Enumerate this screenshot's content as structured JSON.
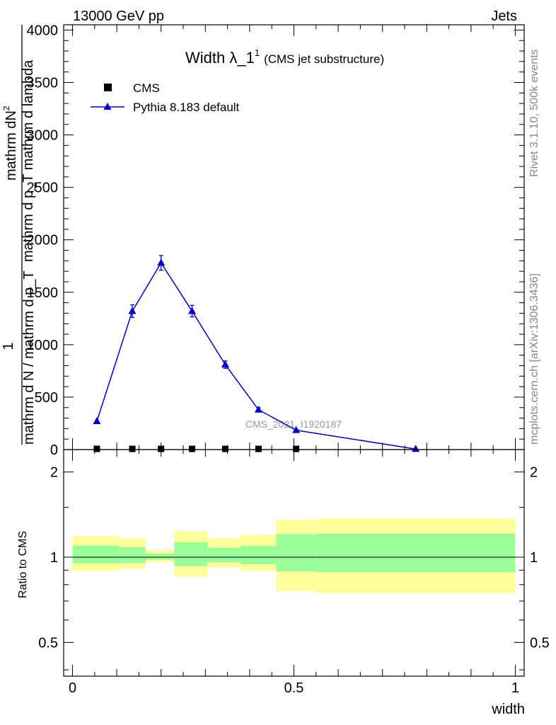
{
  "header": {
    "energy_label": "13000 GeV pp",
    "category_label": "Jets",
    "rivet_label": "Rivet 3.1.10,  500k events",
    "site_label": "mcplots.cern.ch [arXiv:1306.3436]",
    "analysis_label": "CMS_2021_I1920187"
  },
  "chart_data": [
    {
      "type": "line",
      "title": "Width λ_1",
      "title_sup": "1",
      "subtitle": "(CMS jet substructure)",
      "ylabel_numerator": "mathrm dN",
      "ylabel_numerator_sup": "2",
      "ylabel_numerator_2": "mathrm d p_T mathrm d lambda",
      "ylabel_denominator": "mathrm d N / mathrm d p_T",
      "ylabel_one": "1",
      "ylim": [
        0,
        4050
      ],
      "yticks": [
        0,
        500,
        1000,
        1500,
        2000,
        2500,
        3000,
        3500,
        4000
      ],
      "ytick_labels": [
        "0",
        "500",
        "1000",
        "1500",
        "2000",
        "2500",
        "3000",
        "3500",
        "4000"
      ],
      "xlim": [
        -0.02,
        1.02
      ],
      "legend_position": "top-left",
      "series": [
        {
          "name": "CMS",
          "marker": "square",
          "color": "#000000",
          "x": [
            0.055,
            0.135,
            0.2,
            0.27,
            0.345,
            0.42,
            0.505
          ],
          "y": [
            0,
            0,
            0,
            0,
            0,
            0,
            0
          ]
        },
        {
          "name": "Pythia 8.183 default",
          "marker": "triangle",
          "color": "#0000cc",
          "x": [
            0.055,
            0.135,
            0.2,
            0.27,
            0.345,
            0.42,
            0.505,
            0.775
          ],
          "y": [
            270,
            1320,
            1780,
            1320,
            810,
            380,
            185,
            5
          ],
          "yerr": [
            0,
            60,
            70,
            55,
            35,
            20,
            0,
            0
          ]
        }
      ]
    },
    {
      "type": "area",
      "ylabel": "Ratio to CMS",
      "xlabel": "width",
      "log_scale_y": true,
      "ylim": [
        0.38,
        2.4
      ],
      "yticks": [
        0.5,
        1,
        2
      ],
      "ytick_labels": [
        "0.5",
        "1",
        "2"
      ],
      "xlim": [
        -0.02,
        1.02
      ],
      "xticks": [
        0,
        0.5,
        1
      ],
      "xtick_labels": [
        "0",
        "0.5",
        "1"
      ],
      "reference_line": 1,
      "colors": {
        "inner_band": "#99ff99",
        "outer_band": "#ffff99"
      },
      "bins": [
        {
          "x0": 0.0,
          "x1": 0.105,
          "outer": [
            0.895,
            1.185
          ],
          "inner": [
            0.95,
            1.1
          ]
        },
        {
          "x0": 0.105,
          "x1": 0.165,
          "outer": [
            0.91,
            1.165
          ],
          "inner": [
            0.955,
            1.085
          ]
        },
        {
          "x0": 0.165,
          "x1": 0.23,
          "outer": [
            0.96,
            1.06
          ],
          "inner": [
            0.98,
            1.03
          ]
        },
        {
          "x0": 0.23,
          "x1": 0.305,
          "outer": [
            0.855,
            1.235
          ],
          "inner": [
            0.93,
            1.13
          ]
        },
        {
          "x0": 0.305,
          "x1": 0.38,
          "outer": [
            0.92,
            1.17
          ],
          "inner": [
            0.96,
            1.08
          ]
        },
        {
          "x0": 0.38,
          "x1": 0.46,
          "outer": [
            0.895,
            1.2
          ],
          "inner": [
            0.945,
            1.095
          ]
        },
        {
          "x0": 0.46,
          "x1": 0.55,
          "outer": [
            0.76,
            1.355
          ],
          "inner": [
            0.89,
            1.205
          ]
        },
        {
          "x0": 0.55,
          "x1": 1.0,
          "outer": [
            0.745,
            1.37
          ],
          "inner": [
            0.885,
            1.21
          ]
        }
      ]
    }
  ]
}
